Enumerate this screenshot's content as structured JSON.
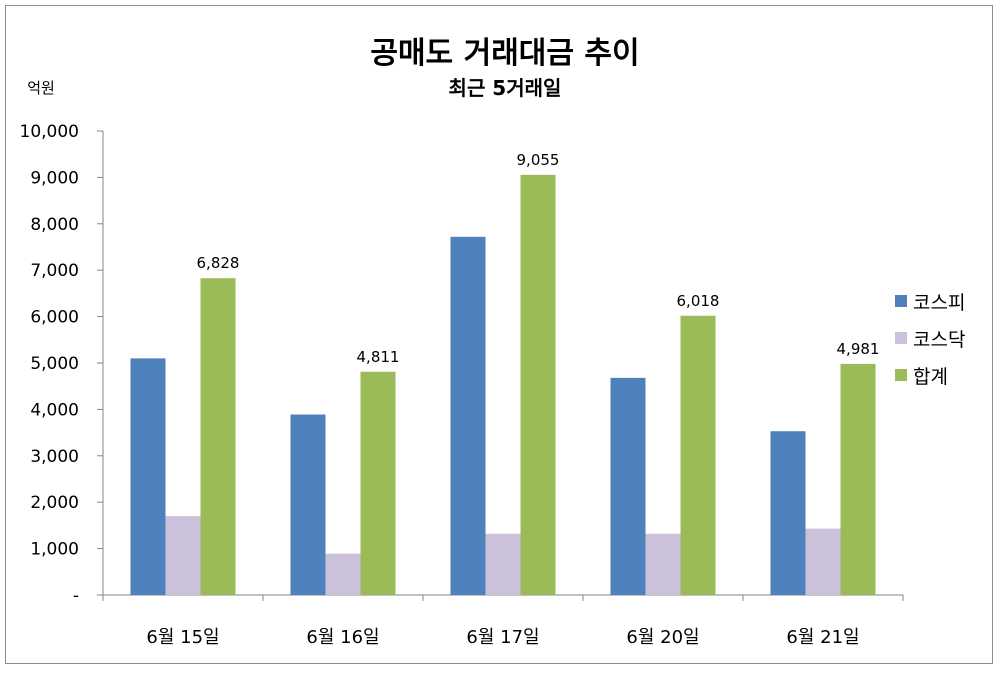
{
  "chart_data": {
    "type": "bar",
    "title": "공매도 거래대금 추이",
    "subtitle": "최근 5거래일",
    "unit_label": "억원",
    "categories": [
      "6월 15일",
      "6월 16일",
      "6월 17일",
      "6월 20일",
      "6월 21일"
    ],
    "series": [
      {
        "name": "코스피",
        "color": "#4f81bd",
        "values": [
          5100,
          3890,
          7720,
          4680,
          3530
        ]
      },
      {
        "name": "코스닥",
        "color": "#ccc1da",
        "values": [
          1700,
          890,
          1320,
          1320,
          1430
        ]
      },
      {
        "name": "합계",
        "color": "#9bbb59",
        "values": [
          6828,
          4811,
          9055,
          6018,
          4981
        ]
      }
    ],
    "data_labels": {
      "series": "합계",
      "texts": [
        "6,828",
        "4,811",
        "9,055",
        "6,018",
        "4,981"
      ]
    },
    "ylim": [
      0,
      10000
    ],
    "yticks": [
      0,
      1000,
      2000,
      3000,
      4000,
      5000,
      6000,
      7000,
      8000,
      9000,
      10000
    ],
    "ytick_labels": [
      "-",
      "1,000",
      "2,000",
      "3,000",
      "4,000",
      "5,000",
      "6,000",
      "7,000",
      "8,000",
      "9,000",
      "10,000"
    ],
    "grid": false,
    "legend_position": "right"
  }
}
